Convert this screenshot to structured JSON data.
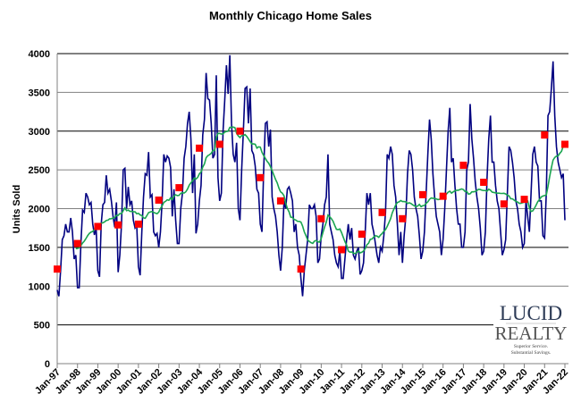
{
  "chart_data": {
    "type": "line",
    "title": "Monthly Chicago Home Sales",
    "xlabel": "",
    "ylabel": "Units Sold",
    "ylim": [
      0,
      4000
    ],
    "yticks": [
      "0",
      "500",
      "1000",
      "1500",
      "2000",
      "2500",
      "3000",
      "3500",
      "4000"
    ],
    "grid": true,
    "xtick_labels": [
      "Jan-97",
      "Jan-98",
      "Jan-99",
      "Jan-00",
      "Jan-01",
      "Jan-02",
      "Jan-03",
      "Jan-04",
      "Jan-05",
      "Jan-06",
      "Jan-07",
      "Jan-08",
      "Jan-09",
      "Jan-10",
      "Jan-11",
      "Jan-12",
      "Jan-13",
      "Jan-14",
      "Jan-15",
      "Jan-16",
      "Jan-17",
      "Jan-18",
      "Jan-19",
      "Jan-20",
      "Jan-21",
      "Jan-22"
    ],
    "colors": {
      "monthly": "#000080",
      "moving_average": "#1aa550",
      "january_markers": "#ff0000"
    },
    "monthly_series_start": "Jan-97",
    "monthly": [
      950,
      870,
      1200,
      1600,
      1650,
      1800,
      1700,
      1700,
      1880,
      1700,
      1350,
      1400,
      980,
      980,
      1550,
      1980,
      1950,
      2200,
      2150,
      2050,
      2080,
      1800,
      1660,
      1750,
      1200,
      1120,
      1800,
      2050,
      2080,
      2430,
      2200,
      2250,
      2100,
      1900,
      1760,
      2080,
      1180,
      1400,
      1800,
      2500,
      2520,
      2000,
      2280,
      2050,
      2100,
      1850,
      1750,
      1780,
      1250,
      1140,
      1700,
      2150,
      2450,
      2430,
      2730,
      2150,
      2180,
      1700,
      1650,
      1680,
      1500,
      1700,
      2100,
      2700,
      2600,
      2680,
      2650,
      2530,
      1900,
      2250,
      1850,
      1550,
      1550,
      2000,
      2200,
      2650,
      2800,
      3100,
      3250,
      2900,
      2200,
      2700,
      1680,
      1800,
      2100,
      2300,
      2950,
      3150,
      3750,
      3420,
      3400,
      3100,
      2650,
      2700,
      3720,
      2400,
      2100,
      2200,
      3000,
      3400,
      3850,
      3480,
      3980,
      3100,
      2700,
      2600,
      2850,
      2000,
      1850,
      2500,
      3000,
      3550,
      3570,
      3100,
      3550,
      2750,
      2700,
      2550,
      2250,
      2200,
      1800,
      1700,
      2500,
      3100,
      3120,
      2800,
      3020,
      2150,
      2000,
      1900,
      1700,
      1400,
      1200,
      1500,
      2100,
      2000,
      2250,
      2280,
      2200,
      2100,
      1700,
      1800,
      1500,
      1400,
      1100,
      870,
      1200,
      1400,
      1600,
      2050,
      2000,
      2000,
      2050,
      1900,
      1300,
      1350,
      1650,
      1800,
      2050,
      2150,
      2700,
      1800,
      1700,
      1600,
      1400,
      1300,
      1250,
      1450,
      1100,
      1100,
      1350,
      1600,
      1800,
      1600,
      1750,
      1400,
      1350,
      1450,
      1500,
      1150,
      1200,
      1300,
      1700,
      2200,
      2050,
      2200,
      1800,
      1700,
      1550,
      1400,
      1300,
      1500,
      1450,
      1650,
      1950,
      2700,
      2650,
      2800,
      2700,
      2300,
      2150,
      1800,
      1400,
      1700,
      1300,
      1650,
      1900,
      2450,
      2750,
      2700,
      2500,
      2150,
      2000,
      1900,
      1650,
      1350,
      1450,
      1700,
      2200,
      2700,
      3150,
      2900,
      2450,
      2150,
      1900,
      1800,
      1700,
      1400,
      1600,
      2000,
      2500,
      3000,
      3300,
      2600,
      2650,
      2300,
      2000,
      1800,
      1800,
      1500,
      1500,
      1700,
      2500,
      2600,
      3350,
      2900,
      2650,
      2350,
      2150,
      2000,
      1750,
      1400,
      1450,
      1700,
      2400,
      2900,
      3200,
      2600,
      2600,
      2300,
      2100,
      2000,
      1700,
      1400,
      1470,
      1600,
      2200,
      2800,
      2750,
      2600,
      2400,
      2100,
      2000,
      1800,
      1700,
      1500,
      1550,
      2100,
      1900,
      1700,
      2200,
      2700,
      2800,
      2600,
      2550,
      2100,
      2100,
      1650,
      1620,
      2200,
      3200,
      3250,
      3550,
      3900,
      3200,
      2800,
      2600,
      2500,
      2400,
      2450,
      1850
    ],
    "january_markers": [
      1220,
      1550,
      1770,
      1790,
      1800,
      2110,
      2270,
      2780,
      2830,
      3000,
      2400,
      2100,
      1220,
      1870,
      1470,
      1670,
      1950,
      1870,
      2180,
      2160,
      2560,
      2340,
      2060,
      2120,
      2950,
      2830
    ]
  },
  "logo": {
    "line1": "LUCID",
    "line2": "REALTY",
    "tagline1": "Superior Service.",
    "tagline2": "Substantial Savings."
  }
}
